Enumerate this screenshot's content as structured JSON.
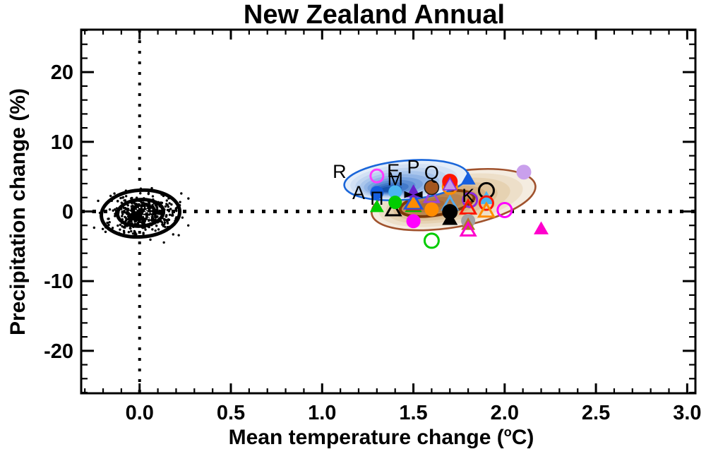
{
  "title": "New Zealand Annual",
  "chart_data": {
    "type": "scatter",
    "title": "New Zealand Annual",
    "xlabel": "Mean temperature change (°C)",
    "ylabel": "Precipitation change (%)",
    "xlim": [
      -0.32,
      3.045
    ],
    "ylim": [
      -26.1,
      26.1
    ],
    "grid": false,
    "x_ticks": {
      "values": [
        0.0,
        0.5,
        1.0,
        1.5,
        2.0,
        2.5,
        3.0
      ],
      "labels": [
        "0.0",
        "0.5",
        "1.0",
        "1.5",
        "2.0",
        "2.5",
        "3.0"
      ],
      "minor_step": 0.1
    },
    "y_ticks": {
      "values": [
        -20,
        -10,
        0,
        10,
        20
      ],
      "labels": [
        "-20",
        "-10",
        "0",
        "10",
        "20"
      ],
      "minor_step": 2
    },
    "reference_lines": {
      "x": 0,
      "y": 0,
      "style": "dotted",
      "color": "#000000"
    },
    "control_cluster": {
      "color": "#000000",
      "outer_ellipse": {
        "cx": 0.005,
        "cy": -0.3,
        "rx": 0.215,
        "ry": 3.35,
        "stroke_px": 5,
        "rot": -4
      },
      "inner_ellipse": {
        "cx": 0.005,
        "cy": -0.2,
        "rx": 0.126,
        "ry": 1.9,
        "stroke_px": 5,
        "rot": -4
      },
      "core": {
        "cx": 0.005,
        "cy": -0.25,
        "rx": 0.075,
        "ry": 1.05
      },
      "dots": {
        "count": 430,
        "cx": 0.012,
        "cy": -0.25,
        "sigma_x": 0.095,
        "sigma_y": 1.4
      },
      "core_dots": {
        "count": 170,
        "sigma_x": 0.045,
        "sigma_y": 0.75
      },
      "speckles": 26
    },
    "density_regions": [
      {
        "name": "blue-density-region",
        "rotation": -5,
        "levels": [
          {
            "cx": 1.46,
            "cy": 4.5,
            "rx": 0.34,
            "ry": 2.8,
            "fill": "#e3edf9",
            "stroke": "#1a66d9",
            "stroke_px": 2.6
          },
          {
            "cx": 1.448,
            "cy": 4.33,
            "rx": 0.295,
            "ry": 2.42,
            "fill": "#d2e1f5"
          },
          {
            "cx": 1.436,
            "cy": 4.15,
            "rx": 0.255,
            "ry": 2.08,
            "fill": "#bfd4f0"
          },
          {
            "cx": 1.424,
            "cy": 3.98,
            "rx": 0.218,
            "ry": 1.77,
            "fill": "#aac6ec"
          },
          {
            "cx": 1.412,
            "cy": 3.82,
            "rx": 0.184,
            "ry": 1.48,
            "fill": "#92b5e6"
          },
          {
            "cx": 1.4,
            "cy": 3.66,
            "rx": 0.152,
            "ry": 1.22,
            "fill": "#78a3df"
          },
          {
            "cx": 1.39,
            "cy": 3.52,
            "rx": 0.122,
            "ry": 0.98,
            "fill": "#5d8fd6"
          },
          {
            "cx": 1.38,
            "cy": 3.4,
            "rx": 0.094,
            "ry": 0.75,
            "fill": "#437aca"
          },
          {
            "cx": 1.37,
            "cy": 3.28,
            "rx": 0.068,
            "ry": 0.54,
            "fill": "#2b66bd"
          },
          {
            "cx": 1.362,
            "cy": 3.18,
            "rx": 0.044,
            "ry": 0.34,
            "fill": "#1853ac"
          }
        ]
      },
      {
        "name": "brown-density-region",
        "rotation": -10,
        "levels": [
          {
            "cx": 1.72,
            "cy": 1.7,
            "rx": 0.455,
            "ry": 3.95,
            "fill": "#f4ece0",
            "stroke": "#a0522d",
            "stroke_px": 2.6
          },
          {
            "cx": 1.705,
            "cy": 1.62,
            "rx": 0.4,
            "ry": 3.45,
            "fill": "#eddfc9"
          },
          {
            "cx": 1.69,
            "cy": 1.55,
            "rx": 0.345,
            "ry": 2.95,
            "fill": "#e6d2b2"
          },
          {
            "cx": 1.675,
            "cy": 1.45,
            "rx": 0.29,
            "ry": 2.5,
            "fill": "#dec29a"
          },
          {
            "cx": 1.66,
            "cy": 1.38,
            "rx": 0.245,
            "ry": 2.1,
            "fill": "#d5b183"
          },
          {
            "cx": 1.645,
            "cy": 1.28,
            "rx": 0.21,
            "ry": 1.75,
            "fill": "#cb9f6a"
          },
          {
            "cx": 1.63,
            "cy": 1.15,
            "rx": 0.205,
            "ry": 1.65,
            "fill": "#c08f55",
            "stroke": "#7c3a0a",
            "stroke_px": 4
          },
          {
            "cx": 1.62,
            "cy": 1.1,
            "rx": 0.16,
            "ry": 1.3,
            "fill": "#b98350"
          },
          {
            "cx": 1.61,
            "cy": 1.0,
            "rx": 0.115,
            "ry": 0.95,
            "fill": "#b07743"
          },
          {
            "cx": 1.6,
            "cy": 0.95,
            "rx": 0.07,
            "ry": 0.6,
            "fill": "#a86b38"
          }
        ]
      }
    ],
    "letters": [
      {
        "char": "R",
        "x": 1.095,
        "y": 5.75
      },
      {
        "char": "A",
        "x": 1.2,
        "y": 2.7
      },
      {
        "char": "E",
        "x": 1.39,
        "y": 5.85
      },
      {
        "char": "M",
        "x": 1.4,
        "y": 4.65
      },
      {
        "char": "P",
        "x": 1.5,
        "y": 6.4
      },
      {
        "char": "Q",
        "x": 1.6,
        "y": 5.55
      },
      {
        "char": "K",
        "x": 1.8,
        "y": 2.3
      },
      {
        "char": "Π",
        "x": 1.3,
        "y": 1.85
      }
    ],
    "markers": [
      {
        "name": "green-open-circle",
        "shape": "circle",
        "open": true,
        "color": "#00cc00",
        "x": 1.6,
        "y": -4.2,
        "r": 10
      },
      {
        "name": "magenta-open-circle-left",
        "shape": "circle",
        "open": true,
        "color": "#ff3dff",
        "x": 1.3,
        "y": 5.1,
        "r": 9
      },
      {
        "name": "violet-open-triangle",
        "shape": "triangle",
        "open": true,
        "color": "#9b45d9",
        "x": 1.6,
        "y": 2.25,
        "s": 20
      },
      {
        "name": "brown-filled-circle",
        "shape": "circle",
        "color": "#a4561e",
        "x": 1.6,
        "y": 3.45,
        "r": 10,
        "stroke": "#1a1a1a"
      },
      {
        "name": "black-open-triangle",
        "shape": "triangle",
        "open": true,
        "color": "#000000",
        "x": 1.39,
        "y": 0.35,
        "s": 20
      },
      {
        "name": "green-filled-triangle-left",
        "shape": "triangle",
        "color": "#00cc00",
        "x": 1.3,
        "y": 0.8,
        "s": 20
      },
      {
        "name": "blue-filled-circle",
        "shape": "circle",
        "color": "#155fe0",
        "x": 1.3,
        "y": 2.7,
        "r": 9.5
      },
      {
        "name": "sky-filled-circle",
        "shape": "circle",
        "color": "#4ab4f0",
        "x": 1.4,
        "y": 2.8,
        "r": 9.5
      },
      {
        "name": "green-filled-circle",
        "shape": "circle",
        "color": "#00cc00",
        "x": 1.4,
        "y": 1.3,
        "r": 9.5
      },
      {
        "name": "green-filled-triangle-stack",
        "shape": "triangle",
        "color": "#00b400",
        "x": 1.5,
        "y": 1.0,
        "s": 24
      },
      {
        "name": "red-filled-triangle-stack",
        "shape": "triangle",
        "color": "#ff2200",
        "x": 1.5,
        "y": 1.15,
        "s": 22
      },
      {
        "name": "blue-open-triangle-stack",
        "shape": "triangle",
        "open": true,
        "color": "#2255dd",
        "x": 1.5,
        "y": 1.5,
        "s": 24
      },
      {
        "name": "orange-filled-triangle-stack",
        "shape": "triangle",
        "color": "#ff8c00",
        "x": 1.5,
        "y": 1.35,
        "s": 19
      },
      {
        "name": "violet-hbar",
        "shape": "hbar",
        "color": "#8a2be2",
        "x": 1.5,
        "y": 2.28,
        "w": 24,
        "h": 3
      },
      {
        "name": "blueviolet-filled-triangle",
        "shape": "triangle",
        "color": "#6a22cc",
        "x": 1.5,
        "y": 2.95,
        "s": 21
      },
      {
        "name": "black-bowtie",
        "shape": "bowtie",
        "color": "#000000",
        "x": 1.5,
        "y": 2.42,
        "w": 26,
        "h": 10
      },
      {
        "name": "magenta-filled-circle",
        "shape": "circle",
        "color": "#ff00ff",
        "x": 1.5,
        "y": -1.4,
        "r": 10
      },
      {
        "name": "orange-filled-circle",
        "shape": "circle",
        "color": "#ff8c00",
        "x": 1.6,
        "y": 0.3,
        "r": 10
      },
      {
        "name": "orange-open-circle-behind",
        "shape": "circle",
        "open": true,
        "color": "#ff8c00",
        "x": 1.7,
        "y": 3.55,
        "r": 10
      },
      {
        "name": "red-filled-circle",
        "shape": "circle",
        "color": "#ff1500",
        "x": 1.7,
        "y": 4.3,
        "r": 11
      },
      {
        "name": "plum-filled-triangle",
        "shape": "triangle",
        "color": "#c49ae8",
        "x": 1.7,
        "y": 3.95,
        "s": 19,
        "stroke": "#8a2be2"
      },
      {
        "name": "sky-open-triangle",
        "shape": "triangle",
        "open": true,
        "color": "#55aaee",
        "x": 1.7,
        "y": 1.2,
        "s": 21
      },
      {
        "name": "black-filled-triangle",
        "shape": "triangle",
        "color": "#000000",
        "x": 1.7,
        "y": -0.95,
        "s": 22
      },
      {
        "name": "black-filled-circle",
        "shape": "circle",
        "color": "#000000",
        "x": 1.7,
        "y": -0.05,
        "r": 11
      },
      {
        "name": "blue-filled-triangle",
        "shape": "triangle",
        "color": "#155fe0",
        "x": 1.8,
        "y": 4.8,
        "s": 21
      },
      {
        "name": "purple-open-circle",
        "shape": "circle",
        "open": true,
        "color": "#8a2be2",
        "x": 1.81,
        "y": 1.65,
        "r": 10
      },
      {
        "name": "red-open-triangle",
        "shape": "triangle",
        "open": true,
        "color": "#ff1500",
        "x": 1.8,
        "y": 0.65,
        "s": 21
      },
      {
        "name": "black-open-circle",
        "shape": "circle",
        "open": true,
        "color": "#000000",
        "x": 1.9,
        "y": 3.0,
        "r": 10.5
      },
      {
        "name": "sky-filled-triangle",
        "shape": "triangle",
        "color": "#4ab4f0",
        "x": 1.9,
        "y": 2.0,
        "s": 21
      },
      {
        "name": "red-open-circle",
        "shape": "circle",
        "open": true,
        "color": "#ff1500",
        "x": 1.9,
        "y": 1.2,
        "r": 9.5
      },
      {
        "name": "orange-open-triangle",
        "shape": "triangle",
        "open": true,
        "color": "#ff8c00",
        "x": 1.9,
        "y": 0.2,
        "s": 21
      },
      {
        "name": "magenta-open-circle-right",
        "shape": "circle",
        "open": true,
        "color": "#ff00ff",
        "x": 2.0,
        "y": 0.2,
        "r": 10
      },
      {
        "name": "gray-filled-circle",
        "shape": "circle",
        "color": "#a3a3a3",
        "x": 1.8,
        "y": -1.35,
        "r": 10
      },
      {
        "name": "peru-filled-triangle",
        "shape": "triangle",
        "color": "#b2702d",
        "x": 1.8,
        "y": -1.75,
        "s": 20
      },
      {
        "name": "magenta-open-triangle",
        "shape": "triangle",
        "open": true,
        "color": "#ff00cc",
        "x": 1.8,
        "y": -2.55,
        "s": 20
      },
      {
        "name": "plum-filled-circle",
        "shape": "circle",
        "color": "#c9a0ec",
        "x": 2.105,
        "y": 5.65,
        "r": 10.5
      },
      {
        "name": "magenta-filled-triangle",
        "shape": "triangle",
        "color": "#ff00cc",
        "x": 2.2,
        "y": -2.35,
        "s": 21
      }
    ]
  }
}
